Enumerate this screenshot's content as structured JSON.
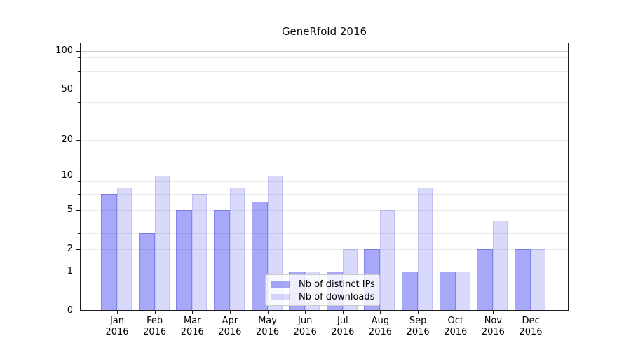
{
  "title": "GeneRfold 2016",
  "chart_data": {
    "type": "bar",
    "title": "GeneRfold 2016",
    "categories": [
      "Jan 2016",
      "Feb 2016",
      "Mar 2016",
      "Apr 2016",
      "May 2016",
      "Jun 2016",
      "Jul 2016",
      "Aug 2016",
      "Sep 2016",
      "Oct 2016",
      "Nov 2016",
      "Dec 2016"
    ],
    "month_labels": [
      "Jan",
      "Feb",
      "Mar",
      "Apr",
      "May",
      "Jun",
      "Jul",
      "Aug",
      "Sep",
      "Oct",
      "Nov",
      "Dec"
    ],
    "year_label": "2016",
    "series": [
      {
        "name": "Nb of distinct IPs",
        "fill": "rgba(0,0,235,0.34)",
        "edge": "rgba(0,0,200,0.22)",
        "hex_on_white": "#a9a9f7",
        "values": [
          7,
          3,
          5,
          5,
          6,
          1,
          1,
          2,
          1,
          1,
          2,
          2
        ]
      },
      {
        "name": "Nb of downloads",
        "fill": "rgba(0,0,235,0.15)",
        "edge": "rgba(0,0,200,0.10)",
        "hex_on_white": "#d9d9f7",
        "values": [
          8,
          10,
          7,
          8,
          10,
          1,
          2,
          5,
          8,
          1,
          4,
          2
        ]
      }
    ],
    "y_axis": {
      "scale": "log1p",
      "tick_values": [
        0,
        1,
        2,
        5,
        10,
        20,
        50,
        100
      ],
      "tick_labels": [
        "0",
        "1",
        "2",
        "5",
        "10",
        "20",
        "50",
        "100"
      ],
      "major_gridlines": [
        1,
        10,
        100
      ],
      "minor_gridlines": [
        2,
        3,
        4,
        5,
        6,
        7,
        8,
        9,
        20,
        30,
        40,
        50,
        60,
        70,
        80,
        90
      ],
      "ylim": [
        0,
        117
      ]
    },
    "legend_position": "lower center",
    "grid": true,
    "colors": {
      "major_grid": "#c9c9c9",
      "minor_grid": "#ebebeb",
      "spine": "#1a1a1a",
      "text": "#0d0d0d",
      "background": "#ffffff"
    }
  }
}
